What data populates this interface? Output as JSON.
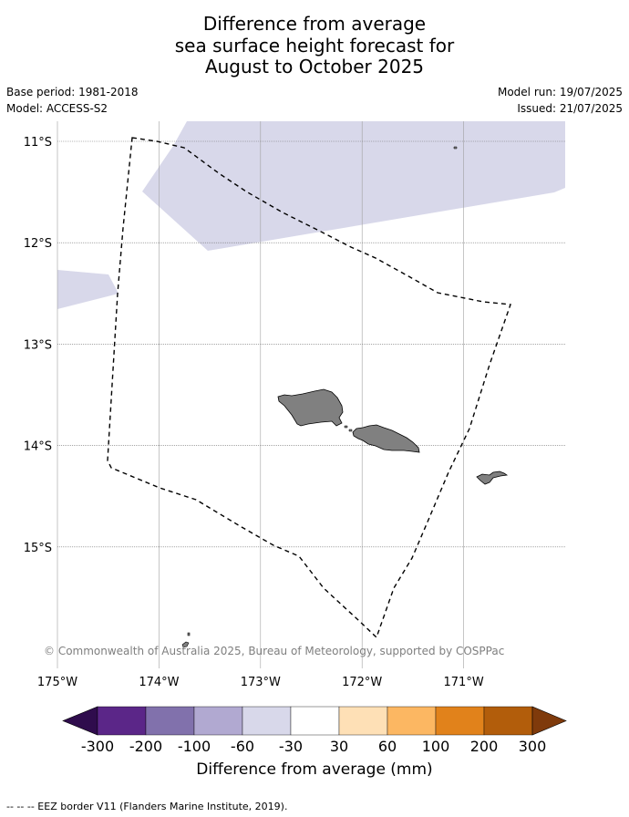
{
  "title": {
    "line1": "Difference from average",
    "line2": "sea surface height forecast for",
    "line3": "August to October 2025"
  },
  "meta": {
    "base_period": "Base period: 1981-2018",
    "model": "Model: ACCESS-S2",
    "model_run": "Model run: 19/07/2025",
    "issued": "Issued: 21/07/2025"
  },
  "map": {
    "lon_range": [
      -175,
      -170
    ],
    "lat_range": [
      -16.2,
      -10.8
    ],
    "lon_ticks": [
      {
        "value": -175,
        "label": "175°W"
      },
      {
        "value": -174,
        "label": "174°W"
      },
      {
        "value": -173,
        "label": "173°W"
      },
      {
        "value": -172,
        "label": "172°W"
      },
      {
        "value": -171,
        "label": "171°W"
      }
    ],
    "lat_ticks": [
      {
        "value": -11,
        "label": "11°S"
      },
      {
        "value": -12,
        "label": "12°S"
      },
      {
        "value": -13,
        "label": "13°S"
      },
      {
        "value": -14,
        "label": "14°S"
      },
      {
        "value": -15,
        "label": "15°S"
      }
    ],
    "background_class": "30 to -30",
    "land_color": "#808080",
    "anomaly_region_class": "-30 to -60",
    "anomaly_region_color": "#d8d8ea"
  },
  "credit": "© Commonwealth of Australia 2025, Bureau of Meteorology, supported by COSPPac",
  "colorbar": {
    "title": "Difference from average (mm)",
    "ticks": [
      "-300",
      "-200",
      "-100",
      "-60",
      "-30",
      "30",
      "60",
      "100",
      "200",
      "300"
    ],
    "colors": [
      "#5b2688",
      "#8171ac",
      "#b1a9d1",
      "#d8d8ea",
      "#ffffff",
      "#fee0b6",
      "#fcb762",
      "#e1821b",
      "#b25d0b"
    ],
    "extend_low_color": "#2f0c4d",
    "extend_high_color": "#7f3a0b"
  },
  "legend_note": "--  --  -- EEZ border V11 (Flanders Marine Institute, 2019)."
}
